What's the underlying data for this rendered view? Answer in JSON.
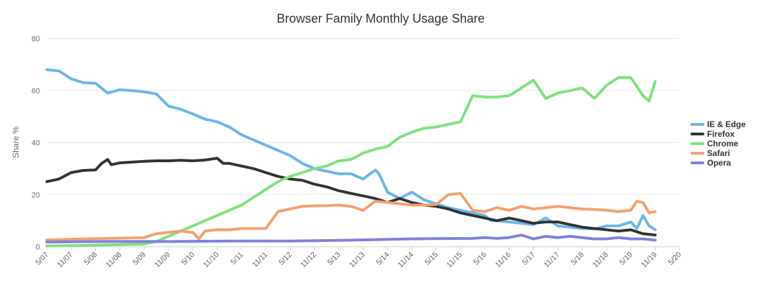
{
  "chart_data": {
    "type": "line",
    "title": "Browser Family Monthly Usage Share",
    "ylabel": "Share %",
    "ylim": [
      0,
      80
    ],
    "yticks": [
      "0",
      "20",
      "40",
      "60",
      "80"
    ],
    "grid": true,
    "legend_placement": "right",
    "x_labels": [
      "5/07",
      "11/07",
      "5/08",
      "11/08",
      "5/09",
      "11/09",
      "5/10",
      "11/10",
      "5/11",
      "11/11",
      "5/12",
      "11/12",
      "5/13",
      "11/13",
      "5/14",
      "11/14",
      "5/15",
      "11/15",
      "5/16",
      "11/16",
      "5/17",
      "11/17",
      "5/18",
      "11/18",
      "5/19",
      "11/19",
      "5/20"
    ],
    "series": [
      {
        "name": "IE & Edge",
        "color": "#6bb6e6",
        "points": [
          [
            0,
            68
          ],
          [
            1,
            67.5
          ],
          [
            2,
            64.5
          ],
          [
            3,
            63
          ],
          [
            4,
            62.8
          ],
          [
            5,
            59
          ],
          [
            6,
            60.3
          ],
          [
            7,
            60
          ],
          [
            8,
            59.5
          ],
          [
            9,
            58.7
          ],
          [
            10,
            54
          ],
          [
            11,
            52.8
          ],
          [
            12,
            51
          ],
          [
            13,
            49
          ],
          [
            14,
            48
          ],
          [
            15,
            46
          ],
          [
            16,
            43
          ],
          [
            17,
            41
          ],
          [
            18,
            39
          ],
          [
            19,
            37
          ],
          [
            20,
            35
          ],
          [
            21,
            32
          ],
          [
            22,
            30
          ],
          [
            23,
            29
          ],
          [
            24,
            28
          ],
          [
            25,
            28
          ],
          [
            26,
            26
          ],
          [
            27,
            29.5
          ],
          [
            27.3,
            28
          ],
          [
            28,
            21
          ],
          [
            29,
            18.5
          ],
          [
            30,
            21
          ],
          [
            31,
            18
          ],
          [
            32,
            16.5
          ],
          [
            33,
            15
          ],
          [
            34,
            14
          ],
          [
            35,
            13
          ],
          [
            36,
            12
          ],
          [
            36.5,
            10
          ],
          [
            37,
            10
          ],
          [
            38,
            9.5
          ],
          [
            39,
            9
          ],
          [
            40,
            8.5
          ],
          [
            41,
            11
          ],
          [
            42,
            8
          ],
          [
            43,
            7.5
          ],
          [
            44,
            7
          ],
          [
            45,
            6.8
          ],
          [
            46,
            8
          ],
          [
            47,
            8
          ],
          [
            48,
            9.5
          ],
          [
            48.5,
            7
          ],
          [
            49,
            12
          ],
          [
            49.5,
            8
          ],
          [
            50,
            6.5
          ]
        ]
      },
      {
        "name": "Firefox",
        "color": "#333333",
        "points": [
          [
            0,
            25
          ],
          [
            1,
            26
          ],
          [
            2,
            28.5
          ],
          [
            3,
            29.3
          ],
          [
            4,
            29.5
          ],
          [
            4.5,
            32
          ],
          [
            5,
            33.5
          ],
          [
            5.3,
            31.5
          ],
          [
            6,
            32.2
          ],
          [
            7,
            32.5
          ],
          [
            8,
            32.8
          ],
          [
            9,
            33
          ],
          [
            10,
            33
          ],
          [
            11,
            33.2
          ],
          [
            12,
            33
          ],
          [
            13,
            33.3
          ],
          [
            14,
            34
          ],
          [
            14.5,
            32
          ],
          [
            15,
            32
          ],
          [
            16,
            31
          ],
          [
            17,
            30
          ],
          [
            18,
            28.5
          ],
          [
            19,
            27
          ],
          [
            20,
            26
          ],
          [
            21,
            25.5
          ],
          [
            22,
            24
          ],
          [
            23,
            23
          ],
          [
            24,
            21.5
          ],
          [
            25,
            20.5
          ],
          [
            26,
            19.5
          ],
          [
            27,
            18.5
          ],
          [
            28,
            17
          ],
          [
            29,
            18.5
          ],
          [
            30,
            17
          ],
          [
            31,
            16
          ],
          [
            32,
            15.5
          ],
          [
            33,
            14.5
          ],
          [
            34,
            13
          ],
          [
            35,
            12
          ],
          [
            36,
            11
          ],
          [
            37,
            10
          ],
          [
            38,
            11
          ],
          [
            39,
            10
          ],
          [
            40,
            9
          ],
          [
            41,
            9.5
          ],
          [
            42,
            9.5
          ],
          [
            43,
            8.5
          ],
          [
            44,
            7.5
          ],
          [
            45,
            7
          ],
          [
            46,
            6.5
          ],
          [
            47,
            6
          ],
          [
            48,
            6.5
          ],
          [
            49,
            5
          ],
          [
            50,
            4.5
          ]
        ]
      },
      {
        "name": "Chrome",
        "color": "#7ee27e",
        "points": [
          [
            0,
            0.3
          ],
          [
            3,
            0.5
          ],
          [
            5,
            0.7
          ],
          [
            8,
            1
          ],
          [
            9,
            2
          ],
          [
            10,
            4
          ],
          [
            11,
            6
          ],
          [
            12,
            8
          ],
          [
            13,
            10
          ],
          [
            14,
            12
          ],
          [
            15,
            14
          ],
          [
            16,
            16
          ],
          [
            17,
            19
          ],
          [
            18,
            22
          ],
          [
            19,
            25
          ],
          [
            20,
            27
          ],
          [
            21,
            28.5
          ],
          [
            22,
            30
          ],
          [
            23,
            31
          ],
          [
            24,
            33
          ],
          [
            25,
            33.5
          ],
          [
            26,
            36
          ],
          [
            27,
            37.5
          ],
          [
            28,
            38.5
          ],
          [
            29,
            42
          ],
          [
            30,
            44
          ],
          [
            31,
            45.5
          ],
          [
            32,
            46
          ],
          [
            33,
            47
          ],
          [
            34,
            48
          ],
          [
            35,
            58
          ],
          [
            36,
            57.5
          ],
          [
            37,
            57.5
          ],
          [
            38,
            58
          ],
          [
            39,
            61
          ],
          [
            40,
            64
          ],
          [
            41,
            57
          ],
          [
            42,
            59
          ],
          [
            43,
            60
          ],
          [
            44,
            61
          ],
          [
            45,
            57
          ],
          [
            46,
            62
          ],
          [
            47,
            65
          ],
          [
            48,
            65
          ],
          [
            49,
            58
          ],
          [
            49.5,
            56
          ],
          [
            50,
            63.5
          ]
        ]
      },
      {
        "name": "Safari",
        "color": "#f5a06e",
        "points": [
          [
            0,
            2.6
          ],
          [
            3,
            3
          ],
          [
            5,
            3.2
          ],
          [
            8,
            3.5
          ],
          [
            9,
            5
          ],
          [
            10,
            5.5
          ],
          [
            11,
            6
          ],
          [
            12,
            5.5
          ],
          [
            12.5,
            3
          ],
          [
            13,
            6
          ],
          [
            14,
            6.5
          ],
          [
            15,
            6.5
          ],
          [
            16,
            7
          ],
          [
            17,
            7
          ],
          [
            18,
            7
          ],
          [
            19,
            13.5
          ],
          [
            20,
            14.5
          ],
          [
            21,
            15.5
          ],
          [
            22,
            15.7
          ],
          [
            23,
            15.8
          ],
          [
            24,
            16
          ],
          [
            25,
            15.5
          ],
          [
            26,
            14
          ],
          [
            27,
            17.5
          ],
          [
            28,
            17
          ],
          [
            29,
            16.5
          ],
          [
            30,
            16
          ],
          [
            31,
            16
          ],
          [
            32,
            16.2
          ],
          [
            33,
            20
          ],
          [
            34,
            20.5
          ],
          [
            35,
            14
          ],
          [
            36,
            13.5
          ],
          [
            37,
            15
          ],
          [
            38,
            14
          ],
          [
            39,
            15.5
          ],
          [
            40,
            14.5
          ],
          [
            41,
            15
          ],
          [
            42,
            15.5
          ],
          [
            43,
            15
          ],
          [
            44,
            14.5
          ],
          [
            45,
            14.3
          ],
          [
            46,
            14
          ],
          [
            47,
            13.5
          ],
          [
            48,
            14
          ],
          [
            48.5,
            17.5
          ],
          [
            49,
            17
          ],
          [
            49.5,
            13
          ],
          [
            50,
            13.5
          ]
        ]
      },
      {
        "name": "Opera",
        "color": "#8080e0",
        "points": [
          [
            0,
            1.8
          ],
          [
            5,
            2
          ],
          [
            10,
            2
          ],
          [
            15,
            2.2
          ],
          [
            20,
            2.2
          ],
          [
            25,
            2.5
          ],
          [
            30,
            3
          ],
          [
            35,
            3.2
          ],
          [
            36,
            3.5
          ],
          [
            37,
            3.2
          ],
          [
            38,
            3.5
          ],
          [
            39,
            4.5
          ],
          [
            40,
            3
          ],
          [
            41,
            4
          ],
          [
            42,
            3.5
          ],
          [
            43,
            4
          ],
          [
            44,
            3.5
          ],
          [
            45,
            3
          ],
          [
            46,
            3
          ],
          [
            47,
            3.5
          ],
          [
            48,
            3
          ],
          [
            49,
            3
          ],
          [
            50,
            2.5
          ]
        ]
      }
    ]
  }
}
